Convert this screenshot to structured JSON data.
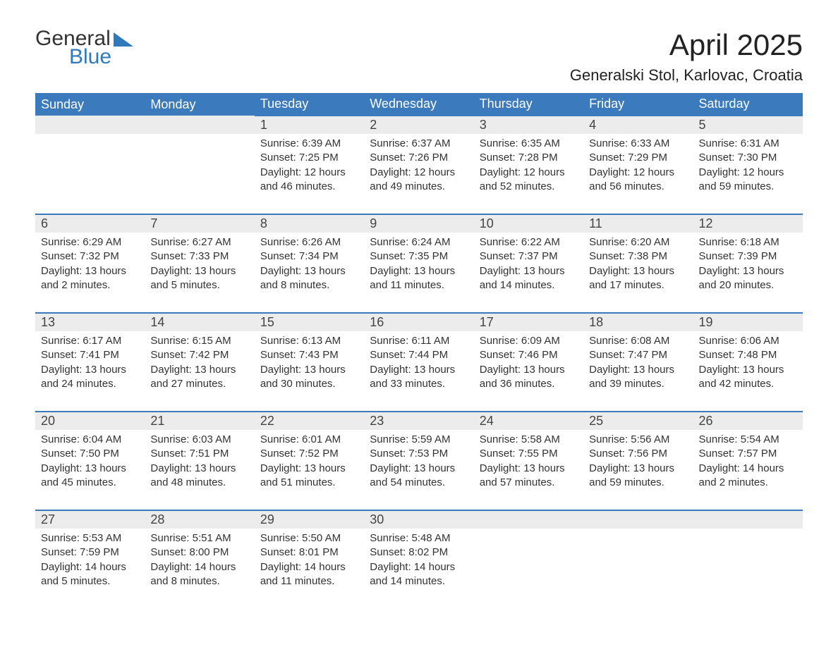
{
  "logo": {
    "text1": "General",
    "text2": "Blue"
  },
  "title": "April 2025",
  "location": "Generalski Stol, Karlovac, Croatia",
  "colors": {
    "header_bg": "#3a7abd",
    "header_text": "#ffffff",
    "daynum_bg": "#ececec",
    "row_border": "#3a7abd",
    "logo_accent": "#2f79bd",
    "body_text": "#333333",
    "background": "#ffffff"
  },
  "typography": {
    "title_fontsize": 42,
    "location_fontsize": 22,
    "header_fontsize": 18,
    "daynum_fontsize": 18,
    "cell_fontsize": 15
  },
  "dayNames": [
    "Sunday",
    "Monday",
    "Tuesday",
    "Wednesday",
    "Thursday",
    "Friday",
    "Saturday"
  ],
  "weeks": [
    [
      null,
      null,
      {
        "n": "1",
        "sunrise": "6:39 AM",
        "sunset": "7:25 PM",
        "daylight": "12 hours and 46 minutes."
      },
      {
        "n": "2",
        "sunrise": "6:37 AM",
        "sunset": "7:26 PM",
        "daylight": "12 hours and 49 minutes."
      },
      {
        "n": "3",
        "sunrise": "6:35 AM",
        "sunset": "7:28 PM",
        "daylight": "12 hours and 52 minutes."
      },
      {
        "n": "4",
        "sunrise": "6:33 AM",
        "sunset": "7:29 PM",
        "daylight": "12 hours and 56 minutes."
      },
      {
        "n": "5",
        "sunrise": "6:31 AM",
        "sunset": "7:30 PM",
        "daylight": "12 hours and 59 minutes."
      }
    ],
    [
      {
        "n": "6",
        "sunrise": "6:29 AM",
        "sunset": "7:32 PM",
        "daylight": "13 hours and 2 minutes."
      },
      {
        "n": "7",
        "sunrise": "6:27 AM",
        "sunset": "7:33 PM",
        "daylight": "13 hours and 5 minutes."
      },
      {
        "n": "8",
        "sunrise": "6:26 AM",
        "sunset": "7:34 PM",
        "daylight": "13 hours and 8 minutes."
      },
      {
        "n": "9",
        "sunrise": "6:24 AM",
        "sunset": "7:35 PM",
        "daylight": "13 hours and 11 minutes."
      },
      {
        "n": "10",
        "sunrise": "6:22 AM",
        "sunset": "7:37 PM",
        "daylight": "13 hours and 14 minutes."
      },
      {
        "n": "11",
        "sunrise": "6:20 AM",
        "sunset": "7:38 PM",
        "daylight": "13 hours and 17 minutes."
      },
      {
        "n": "12",
        "sunrise": "6:18 AM",
        "sunset": "7:39 PM",
        "daylight": "13 hours and 20 minutes."
      }
    ],
    [
      {
        "n": "13",
        "sunrise": "6:17 AM",
        "sunset": "7:41 PM",
        "daylight": "13 hours and 24 minutes."
      },
      {
        "n": "14",
        "sunrise": "6:15 AM",
        "sunset": "7:42 PM",
        "daylight": "13 hours and 27 minutes."
      },
      {
        "n": "15",
        "sunrise": "6:13 AM",
        "sunset": "7:43 PM",
        "daylight": "13 hours and 30 minutes."
      },
      {
        "n": "16",
        "sunrise": "6:11 AM",
        "sunset": "7:44 PM",
        "daylight": "13 hours and 33 minutes."
      },
      {
        "n": "17",
        "sunrise": "6:09 AM",
        "sunset": "7:46 PM",
        "daylight": "13 hours and 36 minutes."
      },
      {
        "n": "18",
        "sunrise": "6:08 AM",
        "sunset": "7:47 PM",
        "daylight": "13 hours and 39 minutes."
      },
      {
        "n": "19",
        "sunrise": "6:06 AM",
        "sunset": "7:48 PM",
        "daylight": "13 hours and 42 minutes."
      }
    ],
    [
      {
        "n": "20",
        "sunrise": "6:04 AM",
        "sunset": "7:50 PM",
        "daylight": "13 hours and 45 minutes."
      },
      {
        "n": "21",
        "sunrise": "6:03 AM",
        "sunset": "7:51 PM",
        "daylight": "13 hours and 48 minutes."
      },
      {
        "n": "22",
        "sunrise": "6:01 AM",
        "sunset": "7:52 PM",
        "daylight": "13 hours and 51 minutes."
      },
      {
        "n": "23",
        "sunrise": "5:59 AM",
        "sunset": "7:53 PM",
        "daylight": "13 hours and 54 minutes."
      },
      {
        "n": "24",
        "sunrise": "5:58 AM",
        "sunset": "7:55 PM",
        "daylight": "13 hours and 57 minutes."
      },
      {
        "n": "25",
        "sunrise": "5:56 AM",
        "sunset": "7:56 PM",
        "daylight": "13 hours and 59 minutes."
      },
      {
        "n": "26",
        "sunrise": "5:54 AM",
        "sunset": "7:57 PM",
        "daylight": "14 hours and 2 minutes."
      }
    ],
    [
      {
        "n": "27",
        "sunrise": "5:53 AM",
        "sunset": "7:59 PM",
        "daylight": "14 hours and 5 minutes."
      },
      {
        "n": "28",
        "sunrise": "5:51 AM",
        "sunset": "8:00 PM",
        "daylight": "14 hours and 8 minutes."
      },
      {
        "n": "29",
        "sunrise": "5:50 AM",
        "sunset": "8:01 PM",
        "daylight": "14 hours and 11 minutes."
      },
      {
        "n": "30",
        "sunrise": "5:48 AM",
        "sunset": "8:02 PM",
        "daylight": "14 hours and 14 minutes."
      },
      null,
      null,
      null
    ]
  ]
}
